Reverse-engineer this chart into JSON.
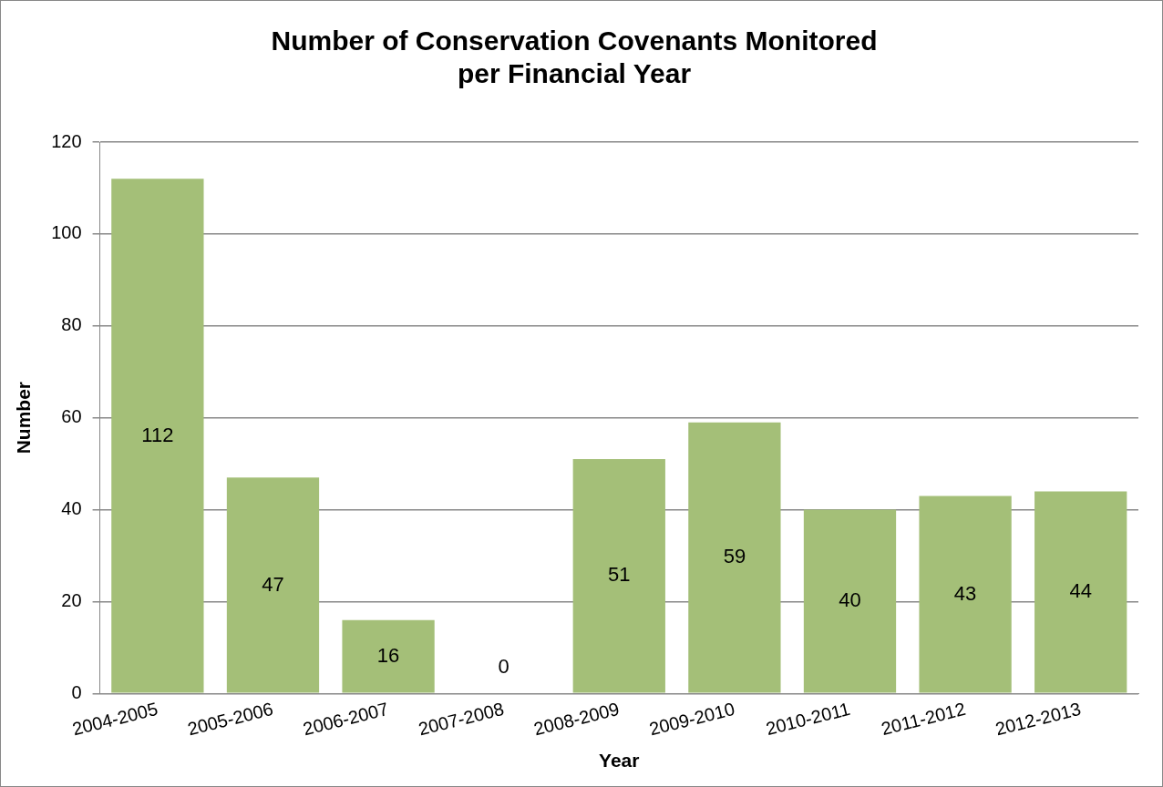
{
  "chart_data": {
    "type": "bar",
    "title": [
      "Number of Conservation Covenants Monitored",
      "per Financial Year"
    ],
    "xlabel": "Year",
    "ylabel": "Number",
    "categories": [
      "2004-2005",
      "2005-2006",
      "2006-2007",
      "2007-2008",
      "2008-2009",
      "2009-2010",
      "2010-2011",
      "2011-2012",
      "2012-2013"
    ],
    "values": [
      112,
      47,
      16,
      0,
      51,
      59,
      40,
      43,
      44
    ],
    "color": "#a4bf78",
    "ylim": [
      0,
      120
    ],
    "yticks": [
      0,
      20,
      40,
      60,
      80,
      100,
      120
    ],
    "grid": "y",
    "data_labels": true
  }
}
